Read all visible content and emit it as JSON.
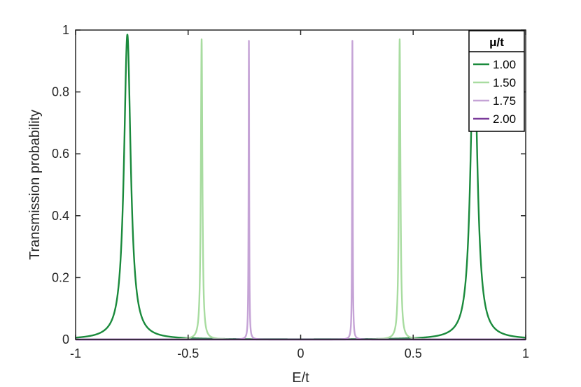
{
  "chart_data": {
    "type": "line",
    "title": "",
    "xlabel": "E/t",
    "ylabel": "Transmission probability",
    "xlim": [
      -1,
      1
    ],
    "ylim": [
      0,
      1
    ],
    "xticks": [
      -1,
      -0.5,
      0,
      0.5,
      1
    ],
    "xtick_labels": [
      "-1",
      "-0.5",
      "0",
      "0.5",
      "1"
    ],
    "yticks": [
      0,
      0.2,
      0.4,
      0.6,
      0.8,
      1
    ],
    "ytick_labels": [
      "0",
      "0.2",
      "0.4",
      "0.6",
      "0.8",
      "1"
    ],
    "grid": false,
    "legend": {
      "title": "μ/t",
      "placement": "top-right",
      "entries": [
        "1.00",
        "1.50",
        "1.75",
        "2.00"
      ]
    },
    "series": [
      {
        "name": "1.00",
        "color": "#1a8a3c",
        "peak_positions": [
          -0.77,
          0.77
        ],
        "peak_height": 0.985,
        "peak_halfwidth": 0.018
      },
      {
        "name": "1.50",
        "color": "#a8dca0",
        "peak_positions": [
          -0.44,
          0.44
        ],
        "peak_height": 0.97,
        "peak_halfwidth": 0.004
      },
      {
        "name": "1.75",
        "color": "#c5a3d6",
        "peak_positions": [
          -0.23,
          0.23
        ],
        "peak_height": 0.965,
        "peak_halfwidth": 0.0015
      },
      {
        "name": "2.00",
        "color": "#7a3a9a",
        "peak_positions": [],
        "peak_height": 0,
        "peak_halfwidth": 0
      }
    ]
  }
}
